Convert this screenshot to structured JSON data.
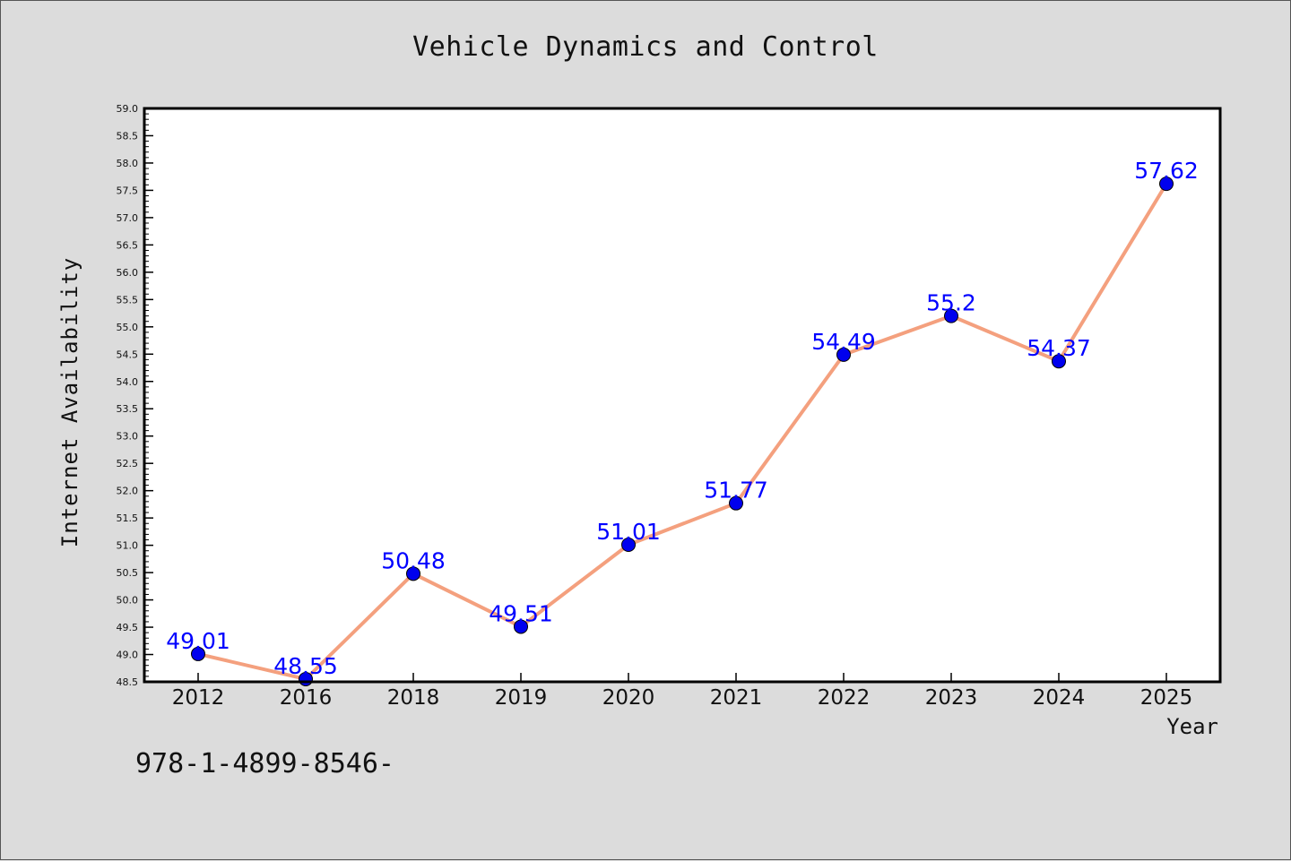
{
  "chart_data": {
    "type": "line",
    "title": "Vehicle Dynamics and Control",
    "xlabel": "Year",
    "ylabel": "Internet Availability",
    "categories": [
      "2012",
      "2016",
      "2018",
      "2019",
      "2020",
      "2021",
      "2022",
      "2023",
      "2024",
      "2025"
    ],
    "series": [
      {
        "values": [
          49.01,
          48.55,
          50.48,
          49.51,
          51.01,
          51.77,
          54.49,
          55.2,
          54.37,
          57.62
        ],
        "data_labels": [
          "49.01",
          "48.55",
          "50.48",
          "49.51",
          "51.01",
          "51.77",
          "54.49",
          "55.2",
          "54.37",
          "57.62"
        ],
        "line_color": "#f4a07e",
        "marker_color": "#0000ee"
      }
    ],
    "ylim": [
      48.5,
      59.0
    ],
    "yticks": [
      "48.5",
      "49.0",
      "49.5",
      "50.0",
      "50.5",
      "51.0",
      "51.5",
      "52.0",
      "52.5",
      "53.0",
      "53.5",
      "54.0",
      "54.5",
      "55.0",
      "55.5",
      "56.0",
      "56.5",
      "57.0",
      "57.5",
      "58.0",
      "58.5",
      "59.0"
    ],
    "grid": false,
    "legend": "none"
  },
  "footnote": "978-1-4899-8546-"
}
